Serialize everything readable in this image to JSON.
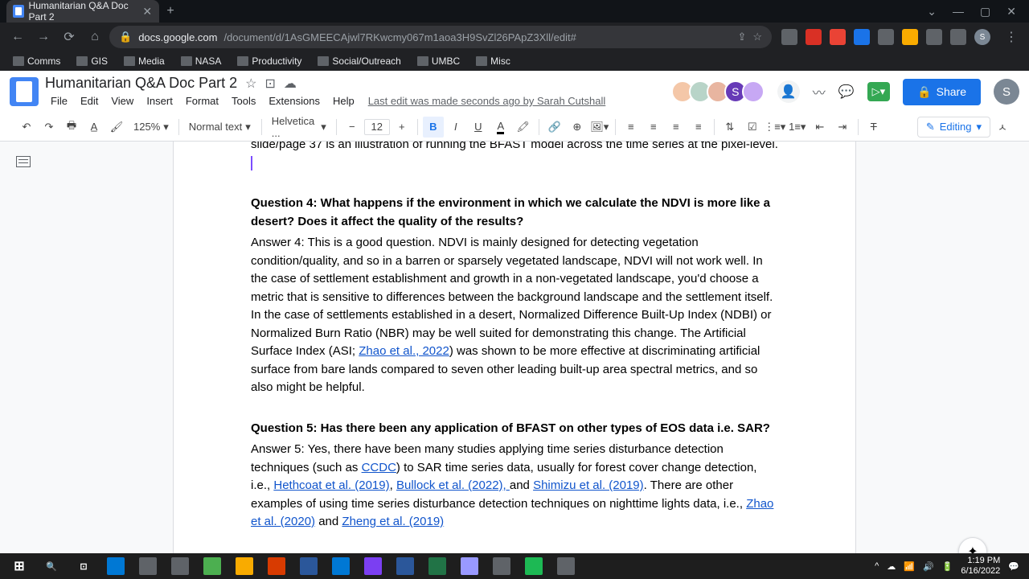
{
  "browser": {
    "tab_title": "Humanitarian Q&A Doc Part 2",
    "url_host": "docs.google.com",
    "url_path": "/document/d/1AsGMEECAjwl7RKwcmy067m1aoa3H9SvZl26PApZ3Xll/edit#",
    "window_controls": {
      "min": "—",
      "max": "▢",
      "close": "✕"
    },
    "bookmarks": [
      "Comms",
      "GIS",
      "Media",
      "NASA",
      "Productivity",
      "Social/Outreach",
      "UMBC",
      "Misc"
    ],
    "ext_colors": [
      "#5f6368",
      "#d93025",
      "#ea4335",
      "#1a73e8",
      "#5f6368",
      "#f9ab00",
      "#5f6368",
      "#5f6368"
    ]
  },
  "docs": {
    "title": "Humanitarian Q&A Doc Part 2",
    "menus": [
      "File",
      "Edit",
      "View",
      "Insert",
      "Format",
      "Tools",
      "Extensions",
      "Help"
    ],
    "edit_note": "Last edit was made seconds ago by Sarah Cutshall",
    "avatar_colors": [
      "#f4c7a8",
      "#b8d4c8",
      "#e8b5a0",
      "#673ab7",
      "#c7a8f4"
    ],
    "avatar_letters": [
      "",
      "",
      "",
      "S",
      ""
    ],
    "share_label": "Share",
    "user_initial": "S"
  },
  "toolbar": {
    "zoom": "125%",
    "style": "Normal text",
    "font": "Helvetica ...",
    "font_size": "12",
    "editing_label": "Editing"
  },
  "content": {
    "frag_top": "slide/page 37 is an illustration of running the BFAST model across the time series at the pixel-level.",
    "q4_heading": "Question 4: What happens if the environment in which we calculate the NDVI is more like a desert? Does it affect the quality of the results?",
    "a4_pre": "Answer 4: This is a good question. NDVI is mainly designed for detecting vegetation condition/quality, and so in a barren or sparsely vegetated landscape, NDVI will not work well. In the case of settlement establishment and growth in a non-vegetated landscape, you'd choose a metric that is sensitive to differences between the background landscape and the settlement itself. In the case of settlements established in a desert, Normalized Difference Built-Up Index (NDBI) or Normalized Burn Ratio (NBR) may be well suited for demonstrating this change. The Artificial Surface Index (ASI; ",
    "a4_link": "Zhao et al., 2022",
    "a4_post": ") was shown to be more effective at discriminating artificial surface from bare lands compared to seven other leading built-up area spectral metrics, and so also might be helpful.",
    "q5_heading": "Question 5: Has there been any application of BFAST on other types of EOS data i.e. SAR?",
    "a5_pre": "Answer 5: Yes, there have been many studies applying time series disturbance detection techniques (such as ",
    "a5_link1": "CCDC",
    "a5_mid1": ") to SAR time series data, usually for forest cover change detection, i.e., ",
    "a5_link2": "Hethcoat et al. (2019)",
    "a5_mid2": ", ",
    "a5_link3": "Bullock et al. (2022), ",
    "a5_mid3": "and ",
    "a5_link4": "Shimizu et al. (2019)",
    "a5_post": ". There are other examples of using time series disturbance detection techniques on nighttime lights data, i.e., ",
    "a5_link5": "Zhao et al. (2020)",
    "a5_mid4": " and ",
    "a5_link6": "Zheng et al. (2019)"
  },
  "taskbar": {
    "app_colors": [
      "#0078d4",
      "#5f6368",
      "#5f6368",
      "#4caf50",
      "#f9ab00",
      "#d83b01",
      "#2b579a",
      "#0078d4",
      "#7b3ff2",
      "#2b579a",
      "#217346",
      "#9999ff",
      "#5f6368",
      "#1db954",
      "#5f6368"
    ],
    "time": "1:19 PM",
    "date": "6/16/2022"
  }
}
